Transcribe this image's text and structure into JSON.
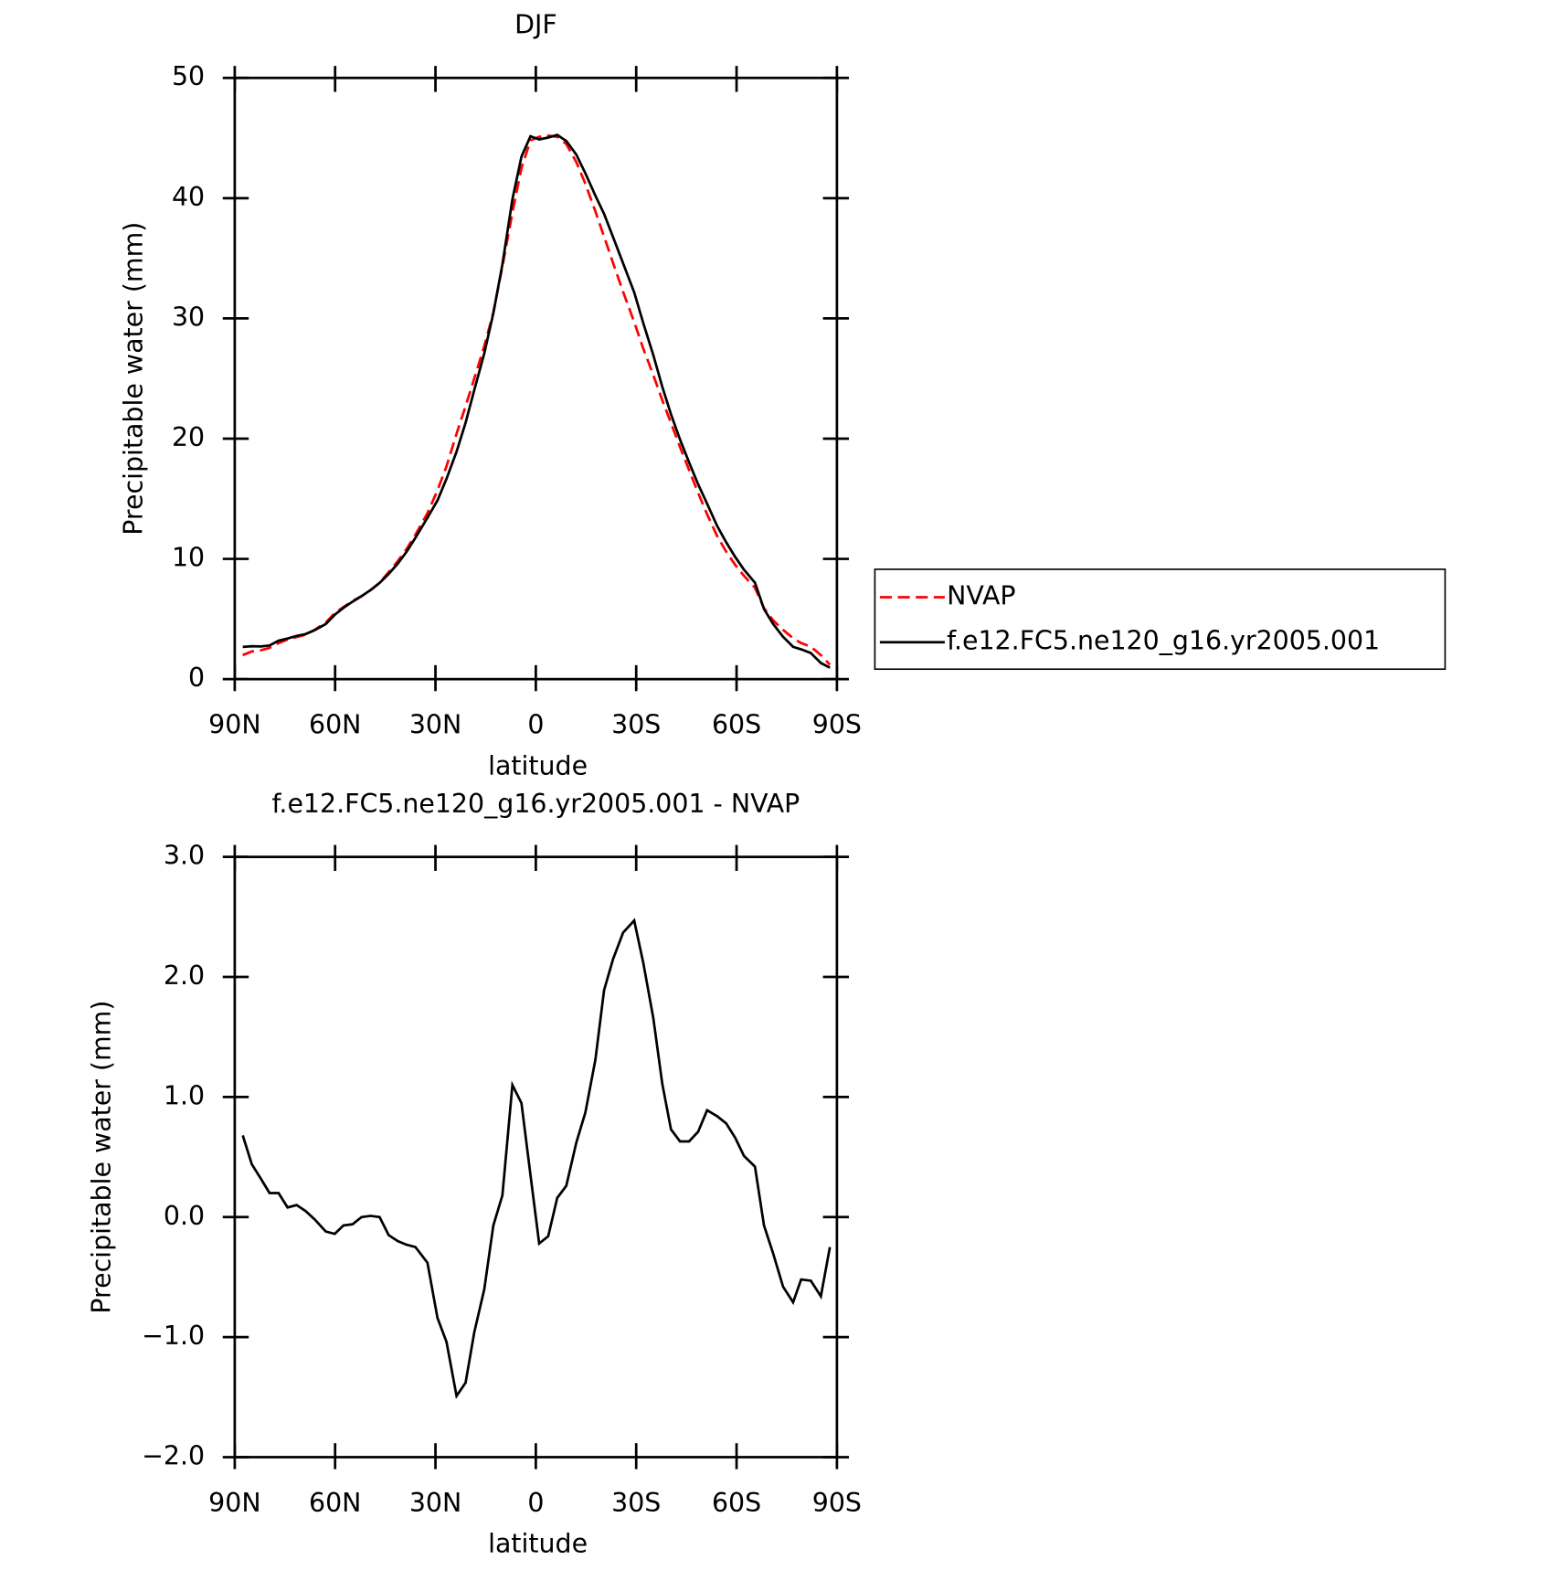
{
  "chart_data": [
    {
      "type": "line",
      "title": "DJF",
      "xlabel": "latitude",
      "ylabel": "Precipitable water (mm)",
      "x": [
        87.6,
        84.9,
        82.2,
        79.6,
        76.9,
        74.2,
        71.5,
        68.8,
        66.1,
        62.8,
        60.1,
        57.5,
        54.8,
        52.1,
        49.4,
        46.7,
        44.0,
        41.3,
        38.7,
        36.0,
        32.4,
        29.4,
        26.7,
        23.7,
        21.0,
        18.4,
        15.4,
        12.7,
        10.0,
        7.0,
        4.3,
        1.6,
        -1.0,
        -3.7,
        -6.4,
        -9.1,
        -12.1,
        -14.8,
        -17.8,
        -20.4,
        -23.1,
        -26.1,
        -29.4,
        -32.1,
        -35.1,
        -37.8,
        -40.4,
        -43.1,
        -45.8,
        -48.5,
        -51.2,
        -54.2,
        -56.9,
        -59.6,
        -62.2,
        -65.5,
        -68.2,
        -70.9,
        -73.9,
        -76.9,
        -79.3,
        -82.2,
        -85.2,
        -87.9
      ],
      "series": [
        {
          "name": "NVAP",
          "color": "#ff0000",
          "linestyle": "dashed",
          "values": [
            2.0,
            2.3,
            2.4,
            2.6,
            3.0,
            3.3,
            3.5,
            3.7,
            4.1,
            4.7,
            5.5,
            6.0,
            6.5,
            6.9,
            7.4,
            8.0,
            8.9,
            9.8,
            10.8,
            12.0,
            13.8,
            15.7,
            17.7,
            20.4,
            22.7,
            25.0,
            27.7,
            30.5,
            34.3,
            38.8,
            42.5,
            44.8,
            45.1,
            45.2,
            45.1,
            44.5,
            43.0,
            41.2,
            38.9,
            36.8,
            34.6,
            32.2,
            29.7,
            27.5,
            25.3,
            23.2,
            21.3,
            19.3,
            17.4,
            15.5,
            13.7,
            11.9,
            10.6,
            9.5,
            8.6,
            7.6,
            5.9,
            4.9,
            4.1,
            3.4,
            3.0,
            2.7,
            2.0,
            1.2
          ]
        },
        {
          "name": "f.e12.FC5.ne120_g16.yr2005.001",
          "color": "#000000",
          "linestyle": "solid",
          "values": [
            2.68,
            2.74,
            2.72,
            2.8,
            3.2,
            3.38,
            3.6,
            3.75,
            4.08,
            4.58,
            5.36,
            5.93,
            6.44,
            6.9,
            7.41,
            8.0,
            8.75,
            9.6,
            10.57,
            11.75,
            13.42,
            14.86,
            16.66,
            18.91,
            21.32,
            24.04,
            27.1,
            30.43,
            34.48,
            39.9,
            43.45,
            45.15,
            44.88,
            45.04,
            45.26,
            44.76,
            43.62,
            42.07,
            40.21,
            38.69,
            36.75,
            34.57,
            32.17,
            29.62,
            26.96,
            24.31,
            22.03,
            19.93,
            18.03,
            16.21,
            14.59,
            12.74,
            11.38,
            10.16,
            9.11,
            8.02,
            5.83,
            4.6,
            3.52,
            2.69,
            2.48,
            2.17,
            1.34,
            0.95
          ]
        }
      ],
      "xlim": [
        90,
        -90
      ],
      "xticks": [
        {
          "value": 90,
          "label": "90N"
        },
        {
          "value": 60,
          "label": "60N"
        },
        {
          "value": 30,
          "label": "30N"
        },
        0,
        {
          "value": -30,
          "label": "30S"
        },
        {
          "value": -60,
          "label": "60S"
        },
        {
          "value": -90,
          "label": "90S"
        }
      ],
      "ylim": [
        0,
        50
      ],
      "yticks": [
        0,
        10,
        20,
        30,
        40,
        50
      ],
      "legend": "right"
    },
    {
      "type": "line",
      "title": "f.e12.FC5.ne120_g16.yr2005.001 - NVAP",
      "xlabel": "latitude",
      "ylabel": "Precipitable water (mm)",
      "x": [
        87.6,
        84.9,
        82.2,
        79.6,
        76.9,
        74.2,
        71.5,
        68.8,
        66.1,
        62.8,
        60.1,
        57.5,
        54.8,
        52.1,
        49.4,
        46.7,
        44.0,
        41.3,
        38.7,
        36.0,
        32.4,
        29.4,
        26.7,
        23.7,
        21.0,
        18.4,
        15.4,
        12.7,
        10.0,
        7.0,
        4.3,
        1.6,
        -1.0,
        -3.7,
        -6.4,
        -9.1,
        -12.1,
        -14.8,
        -17.8,
        -20.4,
        -23.1,
        -26.1,
        -29.4,
        -32.1,
        -35.1,
        -37.8,
        -40.4,
        -43.1,
        -45.8,
        -48.5,
        -51.2,
        -54.2,
        -56.9,
        -59.6,
        -62.2,
        -65.5,
        -68.2,
        -70.9,
        -73.9,
        -76.9,
        -79.3,
        -82.2,
        -85.2,
        -87.9
      ],
      "series": [
        {
          "color": "#000000",
          "linestyle": "solid",
          "values": [
            0.68,
            0.44,
            0.32,
            0.2,
            0.2,
            0.08,
            0.1,
            0.05,
            -0.02,
            -0.12,
            -0.14,
            -0.07,
            -0.06,
            0.0,
            0.01,
            0.0,
            -0.15,
            -0.2,
            -0.23,
            -0.25,
            -0.38,
            -0.84,
            -1.04,
            -1.49,
            -1.38,
            -0.96,
            -0.6,
            -0.07,
            0.18,
            1.1,
            0.95,
            0.35,
            -0.22,
            -0.16,
            0.16,
            0.26,
            0.62,
            0.87,
            1.31,
            1.89,
            2.15,
            2.37,
            2.47,
            2.12,
            1.66,
            1.11,
            0.73,
            0.63,
            0.63,
            0.71,
            0.89,
            0.84,
            0.78,
            0.66,
            0.51,
            0.42,
            -0.07,
            -0.3,
            -0.58,
            -0.71,
            -0.52,
            -0.53,
            -0.66,
            -0.25
          ]
        }
      ],
      "xlim": [
        90,
        -90
      ],
      "xticks": [
        {
          "value": 90,
          "label": "90N"
        },
        {
          "value": 60,
          "label": "60N"
        },
        {
          "value": 30,
          "label": "30N"
        },
        0,
        {
          "value": -30,
          "label": "30S"
        },
        {
          "value": -60,
          "label": "60S"
        },
        {
          "value": -90,
          "label": "90S"
        }
      ],
      "ylim": [
        -2,
        3
      ],
      "yticks": [
        {
          "value": -2,
          "label": "−2.0"
        },
        {
          "value": -1,
          "label": "−1.0"
        },
        {
          "value": 0,
          "label": "0.0"
        },
        {
          "value": 1,
          "label": "1.0"
        },
        {
          "value": 2,
          "label": "2.0"
        },
        {
          "value": 3,
          "label": "3.0"
        }
      ]
    }
  ]
}
